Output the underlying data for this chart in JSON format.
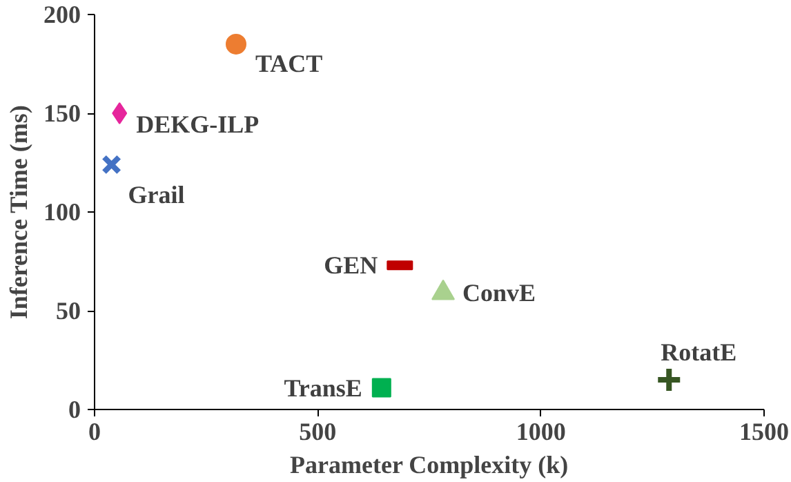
{
  "chart_data": {
    "type": "scatter",
    "xlabel": "Parameter Complexity (k)",
    "ylabel": "Inference Time (ms)",
    "xlim": [
      0,
      1500
    ],
    "xticks": [
      0,
      500,
      1000,
      1500
    ],
    "ylim": [
      0,
      200
    ],
    "yticks": [
      0,
      50,
      100,
      150,
      200
    ],
    "grid": false,
    "series": [
      {
        "name": "TACT",
        "color": "#ed7d31",
        "marker": "circle",
        "x": [
          317
        ],
        "values": [
          185
        ]
      },
      {
        "name": "DEKG-ILP",
        "color": "#e6269c",
        "marker": "diamond",
        "x": [
          56
        ],
        "values": [
          150
        ]
      },
      {
        "name": "Grail",
        "color": "#4472c4",
        "marker": "x",
        "x": [
          38
        ],
        "values": [
          124
        ]
      },
      {
        "name": "GEN",
        "color": "#c00000",
        "marker": "square",
        "x": [
          684
        ],
        "values": [
          73
        ]
      },
      {
        "name": "ConvE",
        "color": "#a9d18e",
        "marker": "triangle",
        "x": [
          781
        ],
        "values": [
          59
        ]
      },
      {
        "name": "TransE",
        "color": "#00b050",
        "marker": "square",
        "x": [
          643
        ],
        "values": [
          11
        ]
      },
      {
        "name": "RotatE",
        "color": "#375623",
        "marker": "cross",
        "x": [
          1287
        ],
        "values": [
          15
        ]
      }
    ]
  }
}
